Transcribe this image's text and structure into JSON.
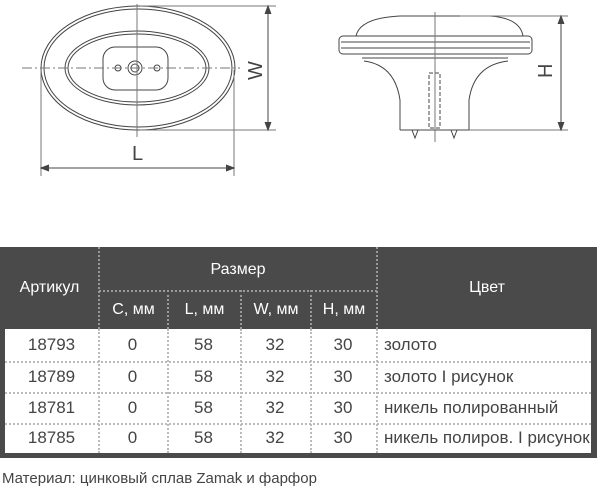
{
  "drawing": {
    "labels": {
      "length": "L",
      "width": "W",
      "height": "H"
    }
  },
  "table": {
    "headers": {
      "article": "Артикул",
      "size": "Размер",
      "color": "Цвет",
      "sub": [
        "C, мм",
        "L, мм",
        "W, мм",
        "H, мм"
      ]
    },
    "rows": [
      {
        "article": "18793",
        "c": "0",
        "l": "58",
        "w": "32",
        "h": "30",
        "color": "золото"
      },
      {
        "article": "18789",
        "c": "0",
        "l": "58",
        "w": "32",
        "h": "30",
        "color": "золото I рисунок"
      },
      {
        "article": "18781",
        "c": "0",
        "l": "58",
        "w": "32",
        "h": "30",
        "color": "никель полированный"
      },
      {
        "article": "18785",
        "c": "0",
        "l": "58",
        "w": "32",
        "h": "30",
        "color": "никель полиров. I рисунок"
      }
    ]
  },
  "footer": "Материал: цинковый сплав Zamak и фарфор"
}
